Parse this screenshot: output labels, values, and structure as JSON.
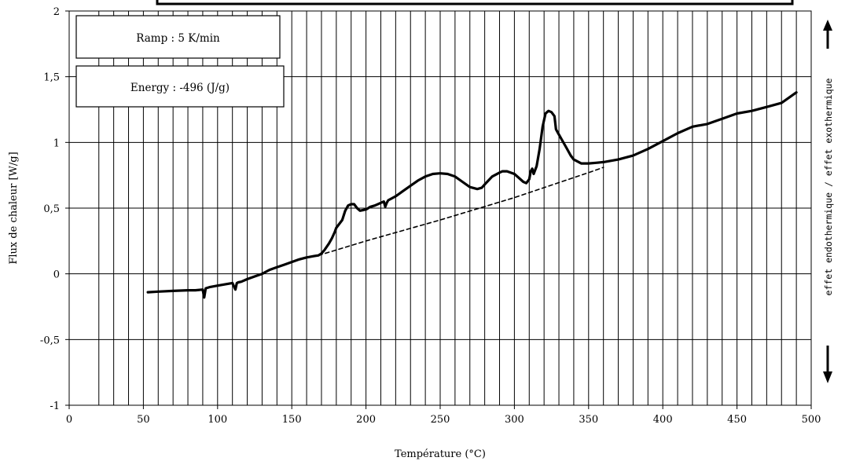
{
  "chart_data": {
    "type": "line",
    "title": "",
    "xlabel": "Température (°C)",
    "ylabel": "Flux de chaleur [W/g]",
    "right_label": "effet endothermique / effet exothermique",
    "xlim": [
      0,
      500
    ],
    "ylim": [
      -1,
      2
    ],
    "xticks": [
      0,
      50,
      100,
      150,
      200,
      250,
      300,
      350,
      400,
      450,
      500
    ],
    "xtick_labels": [
      "0",
      "50",
      "100",
      "150",
      "200",
      "250",
      "300",
      "350",
      "400",
      "450",
      "500"
    ],
    "x_gridlines": [
      20,
      30,
      40,
      50,
      60,
      70,
      80,
      90,
      100,
      110,
      120,
      130,
      140,
      150,
      160,
      170,
      180,
      190,
      200,
      210,
      220,
      230,
      240,
      250,
      260,
      270,
      280,
      290,
      300,
      310,
      320,
      330,
      340,
      350,
      360,
      370,
      380,
      390,
      400,
      410,
      420,
      430,
      440,
      450,
      460,
      470,
      480,
      490
    ],
    "yticks": [
      -1,
      -0.5,
      0,
      0.5,
      1,
      1.5,
      2
    ],
    "ytick_labels": [
      "-1",
      "-0,5",
      "0",
      "0,5",
      "1",
      "1,5",
      "2"
    ],
    "grid": true,
    "annotations": [
      {
        "text": "Ramp : 5 K/min"
      },
      {
        "text": "Energy : -496 (J/g)"
      }
    ],
    "series": [
      {
        "style": "solid",
        "x": [
          53,
          60,
          70,
          80,
          85,
          90,
          91,
          92,
          95,
          100,
          105,
          110,
          112,
          113,
          114,
          116,
          120,
          125,
          130,
          135,
          140,
          145,
          150,
          155,
          160,
          165,
          168,
          170,
          172,
          175,
          177,
          179,
          180,
          182,
          184,
          186,
          188,
          190,
          192,
          194,
          196,
          198,
          200,
          203,
          206,
          210,
          212,
          213,
          214,
          215,
          220,
          225,
          230,
          235,
          240,
          245,
          250,
          255,
          260,
          265,
          270,
          275,
          278,
          280,
          285,
          290,
          292,
          295,
          300,
          303,
          306,
          308,
          310,
          311,
          312,
          313,
          315,
          317,
          319,
          321,
          323,
          325,
          327,
          328,
          330,
          332,
          335,
          338,
          340,
          345,
          350,
          355,
          360,
          370,
          380,
          390,
          400,
          410,
          420,
          430,
          440,
          450,
          460,
          470,
          480,
          490
        ],
        "y": [
          -0.14,
          -0.135,
          -0.13,
          -0.125,
          -0.125,
          -0.12,
          -0.18,
          -0.11,
          -0.1,
          -0.09,
          -0.08,
          -0.07,
          -0.12,
          -0.07,
          -0.065,
          -0.06,
          -0.04,
          -0.02,
          0.0,
          0.03,
          0.05,
          0.07,
          0.09,
          0.11,
          0.125,
          0.135,
          0.14,
          0.155,
          0.18,
          0.23,
          0.27,
          0.32,
          0.35,
          0.38,
          0.41,
          0.48,
          0.52,
          0.53,
          0.53,
          0.5,
          0.48,
          0.485,
          0.49,
          0.51,
          0.52,
          0.54,
          0.55,
          0.51,
          0.54,
          0.56,
          0.59,
          0.63,
          0.67,
          0.71,
          0.74,
          0.76,
          0.765,
          0.76,
          0.74,
          0.7,
          0.66,
          0.645,
          0.655,
          0.68,
          0.74,
          0.77,
          0.78,
          0.78,
          0.76,
          0.73,
          0.7,
          0.69,
          0.72,
          0.78,
          0.8,
          0.76,
          0.82,
          0.95,
          1.12,
          1.22,
          1.24,
          1.23,
          1.2,
          1.1,
          1.06,
          1.02,
          0.96,
          0.9,
          0.87,
          0.84,
          0.84,
          0.845,
          0.85,
          0.87,
          0.9,
          0.95,
          1.01,
          1.07,
          1.12,
          1.14,
          1.18,
          1.22,
          1.24,
          1.27,
          1.3,
          1.38
        ]
      },
      {
        "style": "dashed",
        "x": [
          168,
          200,
          250,
          300,
          350,
          360
        ],
        "y": [
          0.14,
          0.25,
          0.41,
          0.58,
          0.77,
          0.81
        ]
      }
    ]
  }
}
